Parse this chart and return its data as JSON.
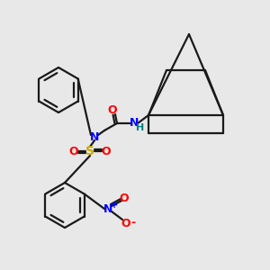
{
  "background_color": "#e8e8e8",
  "bond_color": "#1a1a1a",
  "atom_colors": {
    "N": "#0000ff",
    "O": "#ff0000",
    "S": "#ccaa00",
    "H": "#008080",
    "C": "#1a1a1a"
  },
  "figsize": [
    3.0,
    3.0
  ],
  "dpi": 100
}
